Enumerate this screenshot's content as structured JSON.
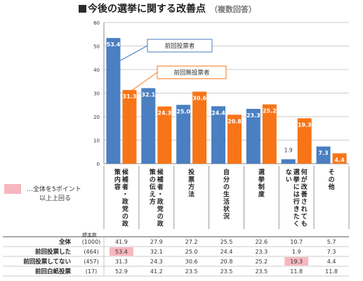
{
  "title": "今後の選挙に関する改善点",
  "subtitle": "（複数回答）",
  "legend_note": [
    "…全体を5ポイント",
    "以上上回る"
  ],
  "sample_header": "標本数",
  "colors": {
    "blue": "#4a7fc1",
    "orange": "#f77518",
    "grid": "#cccccc",
    "highlight": "#f7b6be"
  },
  "chart_data": {
    "type": "bar",
    "ylim": [
      0,
      60
    ],
    "yticks": [
      0,
      10,
      20,
      30,
      40,
      50,
      60
    ],
    "categories": [
      "候補者・政党の政策内容",
      "候補者・政党の政策の伝え方",
      "投票方法",
      "自分の生活状況",
      "選挙制度",
      "何が改善されても選挙には行きたくない",
      "その他"
    ],
    "series": [
      {
        "name": "前回投票者",
        "color": "#4a7fc1",
        "values": [
          53.4,
          32.1,
          25.0,
          24.4,
          23.3,
          1.9,
          7.3
        ]
      },
      {
        "name": "前回無投票者",
        "color": "#f77518",
        "values": [
          31.3,
          24.3,
          30.6,
          20.8,
          25.2,
          19.3,
          4.4
        ]
      }
    ],
    "value_labels": [
      [
        "53.4",
        "32.1",
        "25.0",
        "24.4",
        "23.3",
        "1.9",
        "7.3"
      ],
      [
        "31.3",
        "24.3",
        "30.6",
        "20.8",
        "25.2",
        "19.3",
        "4.4"
      ]
    ],
    "table": {
      "rows": [
        {
          "label": "全体",
          "n": "(1000)",
          "values": [
            "41.9",
            "27.9",
            "27.2",
            "25.5",
            "22.6",
            "10.7",
            "5.7"
          ],
          "highlight": []
        },
        {
          "label": "前回投票した",
          "n": "(464)",
          "values": [
            "53.4",
            "32.1",
            "25.0",
            "24.4",
            "23.3",
            "1.9",
            "7.3"
          ],
          "highlight": [
            0
          ]
        },
        {
          "label": "前回投票してない",
          "n": "(457)",
          "values": [
            "31.3",
            "24.3",
            "30.6",
            "20.8",
            "25.2",
            "19.3",
            "4.4"
          ],
          "highlight": [
            5
          ]
        },
        {
          "label": "前回白紙投票",
          "n": "(17)",
          "values": [
            "52.9",
            "41.2",
            "23.5",
            "23.5",
            "23.5",
            "11.8",
            "11.8"
          ],
          "highlight": []
        }
      ]
    }
  }
}
